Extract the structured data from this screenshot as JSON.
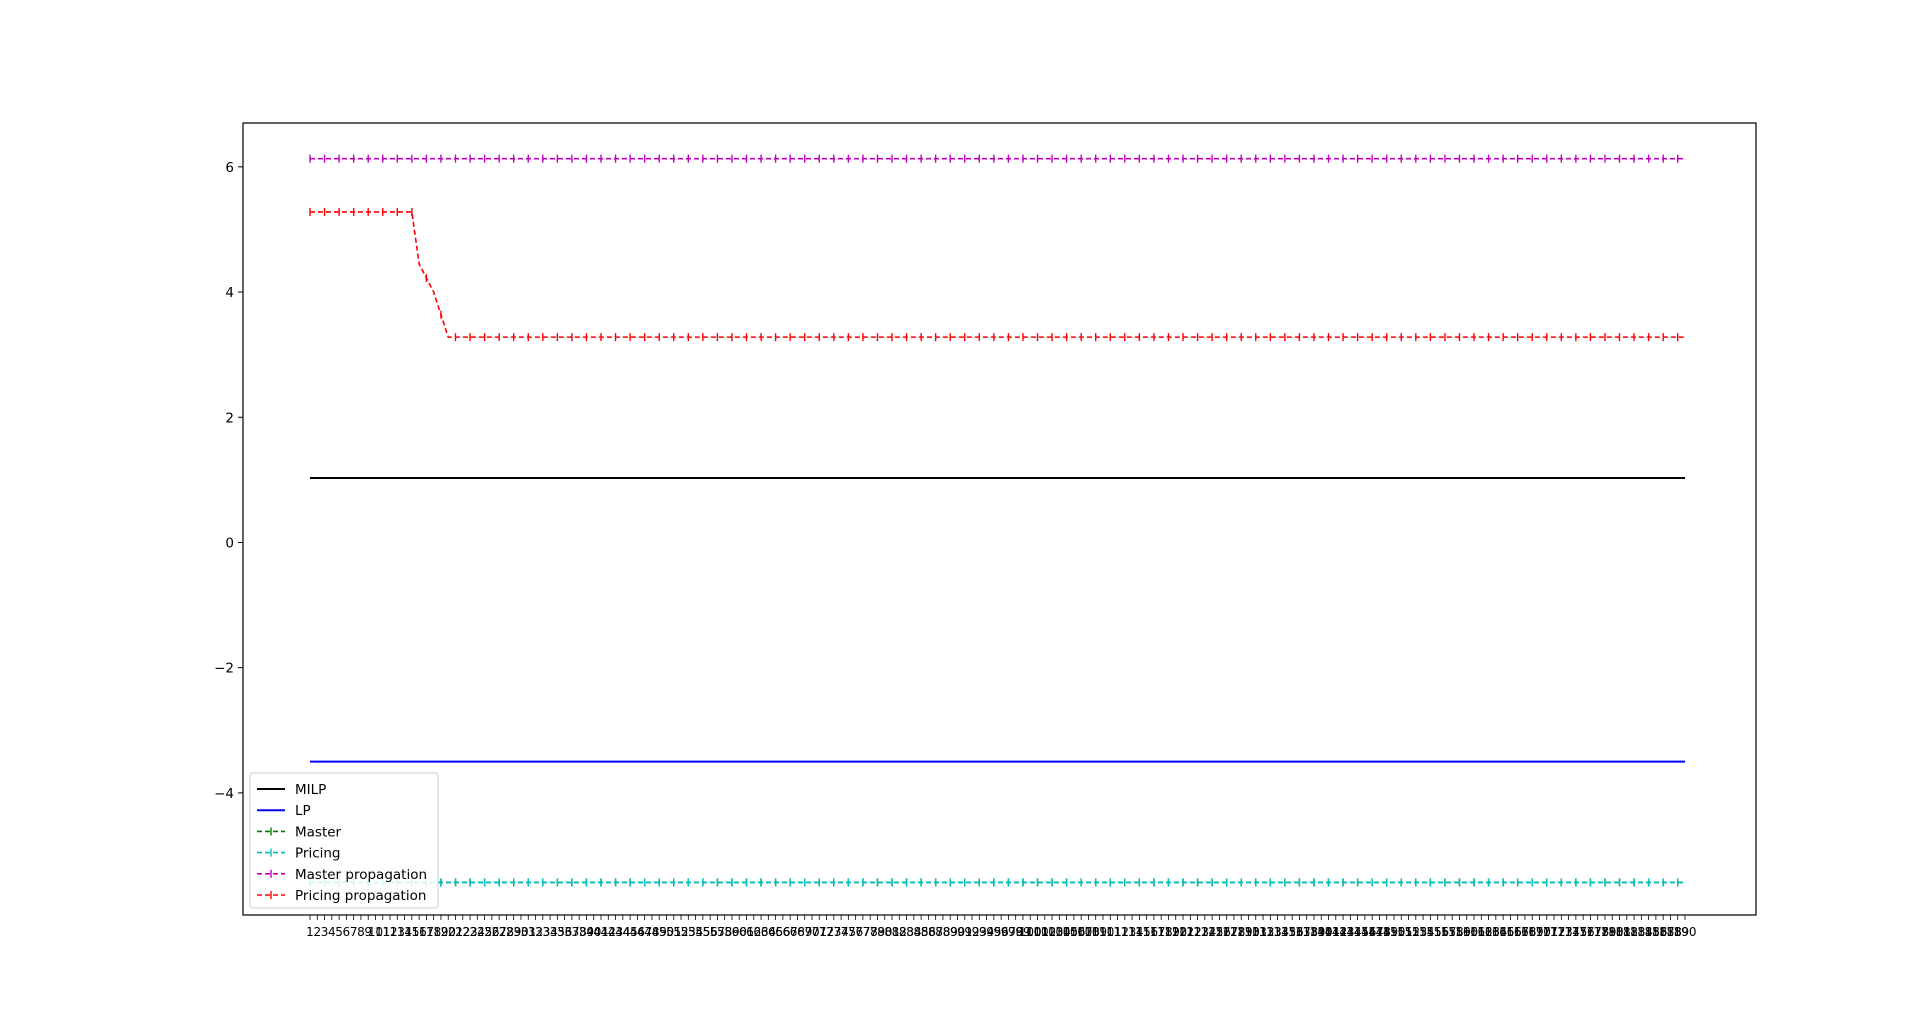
{
  "chart_data": {
    "type": "line",
    "title": "",
    "xlabel": "",
    "ylabel": "",
    "x_range": [
      1,
      190
    ],
    "ylim": [
      -5.95,
      6.7
    ],
    "y_ticks": [
      -4,
      -2,
      0,
      2,
      4,
      6
    ],
    "y_tick_labels": [
      "−4",
      "−2",
      "0",
      "2",
      "4",
      "6"
    ],
    "x_tick_label_range": [
      1,
      190
    ],
    "grid": false,
    "legend_location": "lower left",
    "series": [
      {
        "name": "MILP",
        "style": "solid",
        "marker": "none",
        "color": "#000000",
        "constant": 1.03
      },
      {
        "name": "LP",
        "style": "solid",
        "marker": "none",
        "color": "#0000ff",
        "constant": -3.5
      },
      {
        "name": "Master",
        "style": "dashed",
        "marker": "tick",
        "color": "#008000",
        "constant": -5.43
      },
      {
        "name": "Pricing",
        "style": "dashed",
        "marker": "tick",
        "color": "#00bfbf",
        "constant": -5.43
      },
      {
        "name": "Master propagation",
        "style": "dashed",
        "marker": "tick",
        "color": "#bf00bf",
        "constant": 6.13
      },
      {
        "name": "Pricing propagation",
        "style": "dashed",
        "marker": "tick",
        "color": "#ff0000",
        "points": [
          [
            1,
            5.28
          ],
          [
            15,
            5.28
          ],
          [
            16,
            4.45
          ],
          [
            18,
            4.0
          ],
          [
            20,
            3.28
          ],
          [
            190,
            3.28
          ]
        ]
      }
    ]
  }
}
